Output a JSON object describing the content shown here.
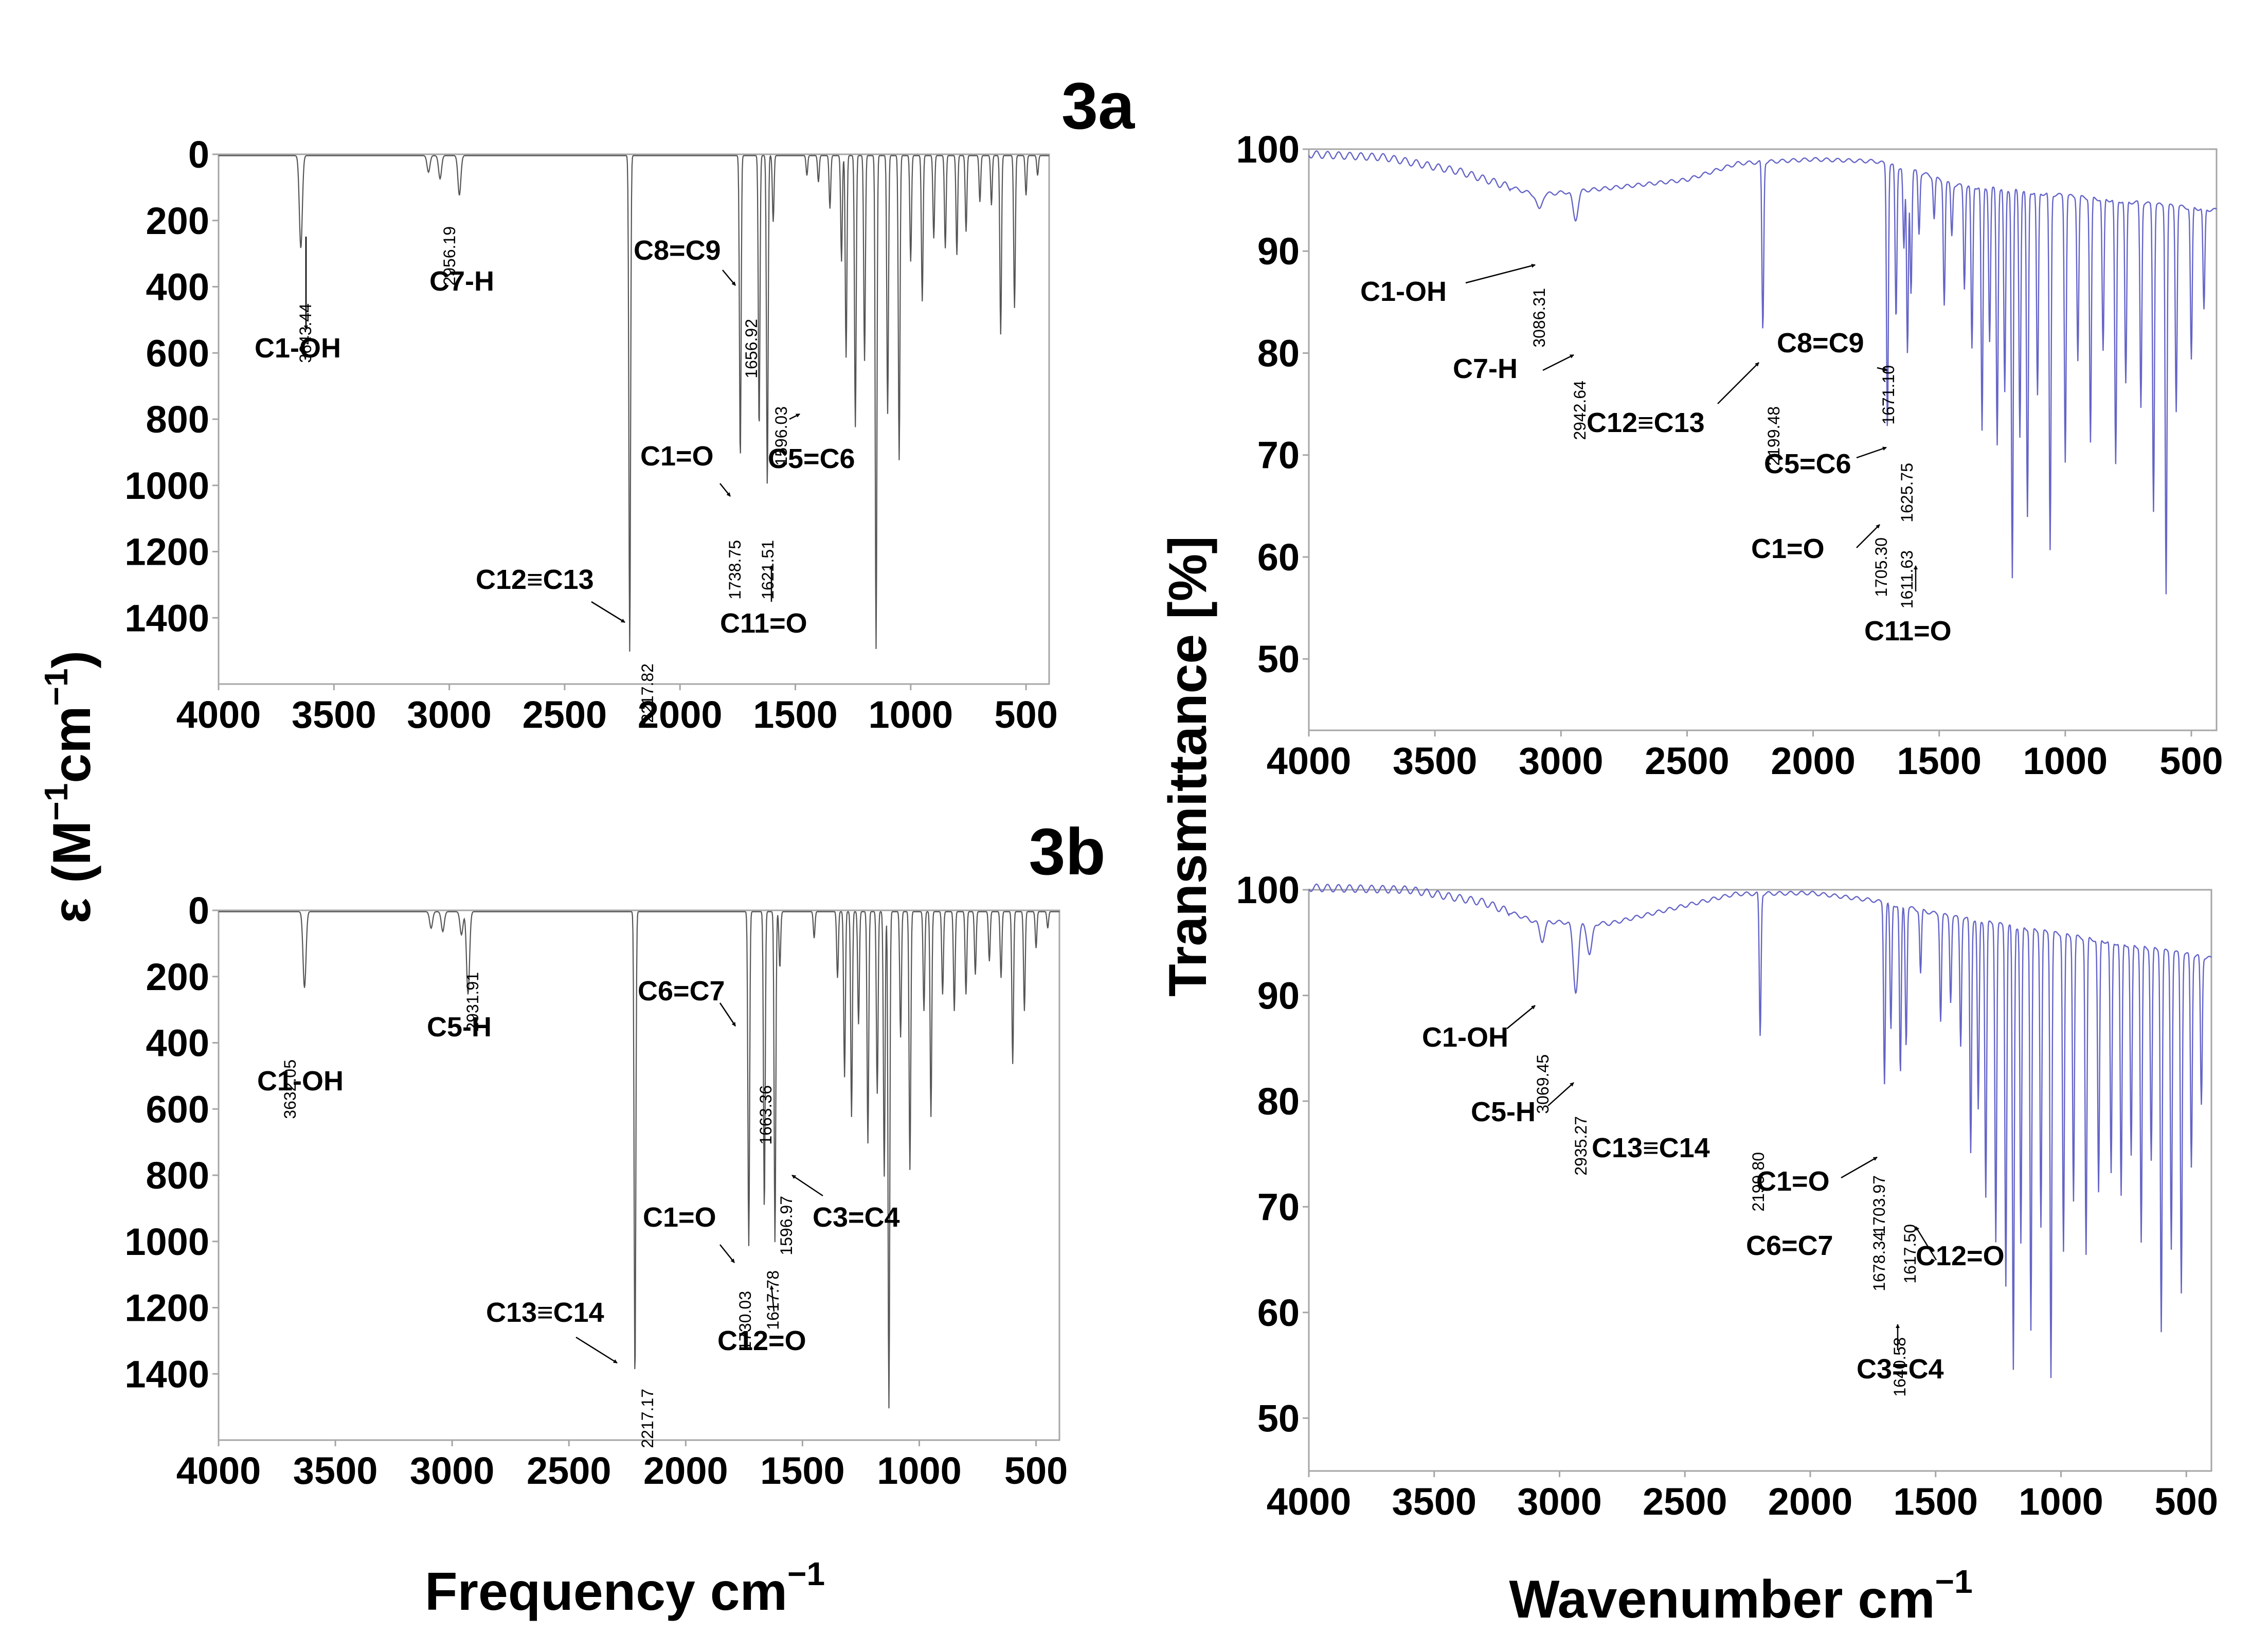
{
  "figure": {
    "left_axis_label": "ε (M⁻¹cm⁻¹)",
    "right_axis_label": "Transmittance [%]",
    "left_xlabel_main": "Frequency cm",
    "right_xlabel_main": "Wavenumber cm",
    "xlabel_sup": "−1"
  },
  "colors": {
    "calc_line": "#555555",
    "exp_line": "#6464c8",
    "axis": "#a6a6a6",
    "text": "#000000"
  },
  "chart_data": [
    {
      "id": "3a-calc",
      "type": "line",
      "title": "3a",
      "xlabel": "Frequency cm−1",
      "ylabel": "ε (M−1cm−1)",
      "xlim": [
        4000,
        400
      ],
      "ylim": [
        0,
        1600
      ],
      "y_inverted": true,
      "grid": false,
      "xticks": [
        4000,
        3500,
        3000,
        2500,
        2000,
        1500,
        1000,
        500
      ],
      "yticks": [
        0,
        200,
        400,
        600,
        800,
        1000,
        1200,
        1400
      ],
      "peaks": [
        {
          "x": 3643.44,
          "y": 280
        },
        {
          "x": 3090,
          "y": 50
        },
        {
          "x": 3040,
          "y": 70
        },
        {
          "x": 2956.19,
          "y": 120
        },
        {
          "x": 2217.82,
          "y": 1500
        },
        {
          "x": 1738.75,
          "y": 920
        },
        {
          "x": 1656.92,
          "y": 830
        },
        {
          "x": 1621.51,
          "y": 1000
        },
        {
          "x": 1596.03,
          "y": 200
        },
        {
          "x": 1450,
          "y": 60
        },
        {
          "x": 1400,
          "y": 80
        },
        {
          "x": 1350,
          "y": 160
        },
        {
          "x": 1300,
          "y": 320
        },
        {
          "x": 1280,
          "y": 610
        },
        {
          "x": 1240,
          "y": 820
        },
        {
          "x": 1200,
          "y": 620
        },
        {
          "x": 1150,
          "y": 1490
        },
        {
          "x": 1100,
          "y": 780
        },
        {
          "x": 1050,
          "y": 920
        },
        {
          "x": 1000,
          "y": 320
        },
        {
          "x": 950,
          "y": 440
        },
        {
          "x": 900,
          "y": 250
        },
        {
          "x": 850,
          "y": 280
        },
        {
          "x": 800,
          "y": 300
        },
        {
          "x": 760,
          "y": 230
        },
        {
          "x": 700,
          "y": 140
        },
        {
          "x": 650,
          "y": 150
        },
        {
          "x": 610,
          "y": 540
        },
        {
          "x": 550,
          "y": 460
        },
        {
          "x": 500,
          "y": 120
        },
        {
          "x": 450,
          "y": 60
        }
      ],
      "annotations": [
        {
          "label": "C1-OH",
          "peak": "3643.44"
        },
        {
          "label": "C7-H",
          "peak": "2956.19"
        },
        {
          "label": "C8=C9",
          "peak": "1656.92"
        },
        {
          "label": "C5=C6",
          "peak": "1596.03"
        },
        {
          "label": "C1=O",
          "peak": "1738.75"
        },
        {
          "label": "C11=O",
          "peak": "1621.51"
        },
        {
          "label": "C12≡C13",
          "peak": "2217.82"
        }
      ]
    },
    {
      "id": "3b-calc",
      "type": "line",
      "title": "3b",
      "xlabel": "Frequency cm−1",
      "ylabel": "ε (M−1cm−1)",
      "xlim": [
        4000,
        400
      ],
      "ylim": [
        0,
        1600
      ],
      "y_inverted": true,
      "grid": false,
      "xticks": [
        4000,
        3500,
        3000,
        2500,
        2000,
        1500,
        1000,
        500
      ],
      "yticks": [
        0,
        200,
        400,
        600,
        800,
        1000,
        1200,
        1400
      ],
      "peaks": [
        {
          "x": 3632.05,
          "y": 230
        },
        {
          "x": 3090,
          "y": 50
        },
        {
          "x": 3040,
          "y": 60
        },
        {
          "x": 2960,
          "y": 70
        },
        {
          "x": 2931.91,
          "y": 250
        },
        {
          "x": 2217.17,
          "y": 1420
        },
        {
          "x": 1730.03,
          "y": 1010
        },
        {
          "x": 1663.36,
          "y": 900
        },
        {
          "x": 1617.78,
          "y": 1000
        },
        {
          "x": 1596.97,
          "y": 170
        },
        {
          "x": 1450,
          "y": 80
        },
        {
          "x": 1350,
          "y": 200
        },
        {
          "x": 1320,
          "y": 500
        },
        {
          "x": 1290,
          "y": 620
        },
        {
          "x": 1260,
          "y": 340
        },
        {
          "x": 1220,
          "y": 700
        },
        {
          "x": 1180,
          "y": 550
        },
        {
          "x": 1150,
          "y": 800
        },
        {
          "x": 1130,
          "y": 1500
        },
        {
          "x": 1080,
          "y": 380
        },
        {
          "x": 1040,
          "y": 780
        },
        {
          "x": 980,
          "y": 300
        },
        {
          "x": 950,
          "y": 620
        },
        {
          "x": 900,
          "y": 250
        },
        {
          "x": 850,
          "y": 300
        },
        {
          "x": 800,
          "y": 250
        },
        {
          "x": 760,
          "y": 190
        },
        {
          "x": 700,
          "y": 150
        },
        {
          "x": 650,
          "y": 200
        },
        {
          "x": 600,
          "y": 460
        },
        {
          "x": 550,
          "y": 300
        },
        {
          "x": 500,
          "y": 110
        },
        {
          "x": 450,
          "y": 50
        }
      ],
      "annotations": [
        {
          "label": "C1-OH",
          "peak": "3632.05"
        },
        {
          "label": "C5-H",
          "peak": "2931.91"
        },
        {
          "label": "C6=C7",
          "peak": "1663.36"
        },
        {
          "label": "C3=C4",
          "peak": "1596.97"
        },
        {
          "label": "C1=O",
          "peak": "1730.03"
        },
        {
          "label": "C12=O",
          "peak": "1617.78"
        },
        {
          "label": "C13≡C14",
          "peak": "2217.17"
        }
      ]
    },
    {
      "id": "3a-exp",
      "type": "line",
      "title": "3a",
      "xlabel": "Wavenumber cm−1",
      "ylabel": "Transmittance [%]",
      "xlim": [
        4000,
        400
      ],
      "ylim": [
        43,
        100
      ],
      "grid": false,
      "xticks": [
        4000,
        3500,
        3000,
        2500,
        2000,
        1500,
        1000,
        500
      ],
      "yticks": [
        50,
        60,
        70,
        80,
        90,
        100
      ],
      "baseline": [
        [
          4000,
          99.5
        ],
        [
          3700,
          99.2
        ],
        [
          3400,
          97.8
        ],
        [
          3100,
          95.5
        ],
        [
          2800,
          96.2
        ],
        [
          2500,
          97.0
        ],
        [
          2300,
          98.6
        ],
        [
          2000,
          99.0
        ],
        [
          1750,
          98.8
        ],
        [
          1550,
          97.5
        ],
        [
          1450,
          96.5
        ],
        [
          400,
          94.0
        ]
      ],
      "bands": [
        {
          "x": 3086.31,
          "depth": 1.5
        },
        {
          "x": 2942.64,
          "depth": 2.8
        },
        {
          "x": 2199.48,
          "depth": 16.5
        },
        {
          "x": 1705.3,
          "depth": 26.0
        },
        {
          "x": 1671.1,
          "depth": 15.0
        },
        {
          "x": 1640,
          "depth": 8.0
        },
        {
          "x": 1625.75,
          "depth": 18.0
        },
        {
          "x": 1611.63,
          "depth": 12.0
        },
        {
          "x": 1580,
          "depth": 6.0
        },
        {
          "x": 1520,
          "depth": 4.0
        },
        {
          "x": 1480,
          "depth": 12.0
        },
        {
          "x": 1450,
          "depth": 5.0
        },
        {
          "x": 1400,
          "depth": 10.0
        },
        {
          "x": 1370,
          "depth": 16.0
        },
        {
          "x": 1330,
          "depth": 24.0
        },
        {
          "x": 1300,
          "depth": 15.0
        },
        {
          "x": 1270,
          "depth": 25.0
        },
        {
          "x": 1240,
          "depth": 20.0
        },
        {
          "x": 1210,
          "depth": 38.0
        },
        {
          "x": 1180,
          "depth": 24.0
        },
        {
          "x": 1150,
          "depth": 32.0
        },
        {
          "x": 1110,
          "depth": 20.0
        },
        {
          "x": 1060,
          "depth": 35.0
        },
        {
          "x": 1000,
          "depth": 26.0
        },
        {
          "x": 950,
          "depth": 16.0
        },
        {
          "x": 900,
          "depth": 24.0
        },
        {
          "x": 850,
          "depth": 15.0
        },
        {
          "x": 800,
          "depth": 26.0
        },
        {
          "x": 760,
          "depth": 18.0
        },
        {
          "x": 700,
          "depth": 20.0
        },
        {
          "x": 650,
          "depth": 30.0
        },
        {
          "x": 600,
          "depth": 38.0
        },
        {
          "x": 560,
          "depth": 20.0
        },
        {
          "x": 500,
          "depth": 15.0
        },
        {
          "x": 450,
          "depth": 10.0
        }
      ],
      "annotations": [
        {
          "label": "C1-OH",
          "peak": "3086.31"
        },
        {
          "label": "C7-H",
          "peak": "2942.64"
        },
        {
          "label": "C12≡C13",
          "peak": "2199.48"
        },
        {
          "label": "C8=C9",
          "peak": "1671.10"
        },
        {
          "label": "C5=C6",
          "peak": "1625.75"
        },
        {
          "label": "C1=O",
          "peak": "1705.30"
        },
        {
          "label": "C11=O",
          "peak": "1611.63"
        }
      ]
    },
    {
      "id": "3b-exp",
      "type": "line",
      "title": "3b",
      "xlabel": "Wavenumber cm−1",
      "ylabel": "Transmittance [%]",
      "xlim": [
        4000,
        400
      ],
      "ylim": [
        45,
        100
      ],
      "grid": false,
      "xticks": [
        4000,
        3500,
        3000,
        2500,
        2000,
        1500,
        1000,
        500
      ],
      "yticks": [
        50,
        60,
        70,
        80,
        90,
        100
      ],
      "baseline": [
        [
          4000,
          100.2
        ],
        [
          3600,
          100.0
        ],
        [
          3300,
          98.8
        ],
        [
          3100,
          97.0
        ],
        [
          2800,
          96.8
        ],
        [
          2500,
          98.5
        ],
        [
          2300,
          99.6
        ],
        [
          2000,
          99.7
        ],
        [
          1750,
          99.0
        ],
        [
          1550,
          98.0
        ],
        [
          1450,
          97.5
        ],
        [
          400,
          93.5
        ]
      ],
      "bands": [
        {
          "x": 3069.45,
          "depth": 1.8
        },
        {
          "x": 2935.27,
          "depth": 6.5
        },
        {
          "x": 2880,
          "depth": 3.0
        },
        {
          "x": 2199.8,
          "depth": 13.5
        },
        {
          "x": 1703.97,
          "depth": 17.0
        },
        {
          "x": 1678.34,
          "depth": 12.0
        },
        {
          "x": 1640.58,
          "depth": 16.0
        },
        {
          "x": 1617.5,
          "depth": 13.0
        },
        {
          "x": 1560,
          "depth": 6.0
        },
        {
          "x": 1480,
          "depth": 10.0
        },
        {
          "x": 1440,
          "depth": 8.0
        },
        {
          "x": 1400,
          "depth": 12.0
        },
        {
          "x": 1360,
          "depth": 22.0
        },
        {
          "x": 1330,
          "depth": 18.0
        },
        {
          "x": 1300,
          "depth": 26.0
        },
        {
          "x": 1260,
          "depth": 30.0
        },
        {
          "x": 1220,
          "depth": 34.0
        },
        {
          "x": 1190,
          "depth": 42.0
        },
        {
          "x": 1160,
          "depth": 30.0
        },
        {
          "x": 1120,
          "depth": 38.0
        },
        {
          "x": 1080,
          "depth": 28.0
        },
        {
          "x": 1040,
          "depth": 42.0
        },
        {
          "x": 990,
          "depth": 30.0
        },
        {
          "x": 950,
          "depth": 25.0
        },
        {
          "x": 900,
          "depth": 30.0
        },
        {
          "x": 850,
          "depth": 24.0
        },
        {
          "x": 800,
          "depth": 22.0
        },
        {
          "x": 760,
          "depth": 24.0
        },
        {
          "x": 720,
          "depth": 20.0
        },
        {
          "x": 680,
          "depth": 28.0
        },
        {
          "x": 640,
          "depth": 20.0
        },
        {
          "x": 600,
          "depth": 36.0
        },
        {
          "x": 560,
          "depth": 28.0
        },
        {
          "x": 520,
          "depth": 32.0
        },
        {
          "x": 480,
          "depth": 20.0
        },
        {
          "x": 440,
          "depth": 14.0
        }
      ],
      "annotations": [
        {
          "label": "C1-OH",
          "peak": "3069.45"
        },
        {
          "label": "C5-H",
          "peak": "2935.27"
        },
        {
          "label": "C13≡C14",
          "peak": "2199.80"
        },
        {
          "label": "C1=O",
          "peak": "1703.97"
        },
        {
          "label": "C6=C7",
          "peak": "1678.34"
        },
        {
          "label": "C12=O",
          "peak": "1617.50"
        },
        {
          "label": "C3=C4",
          "peak": "1640.58"
        }
      ]
    }
  ]
}
